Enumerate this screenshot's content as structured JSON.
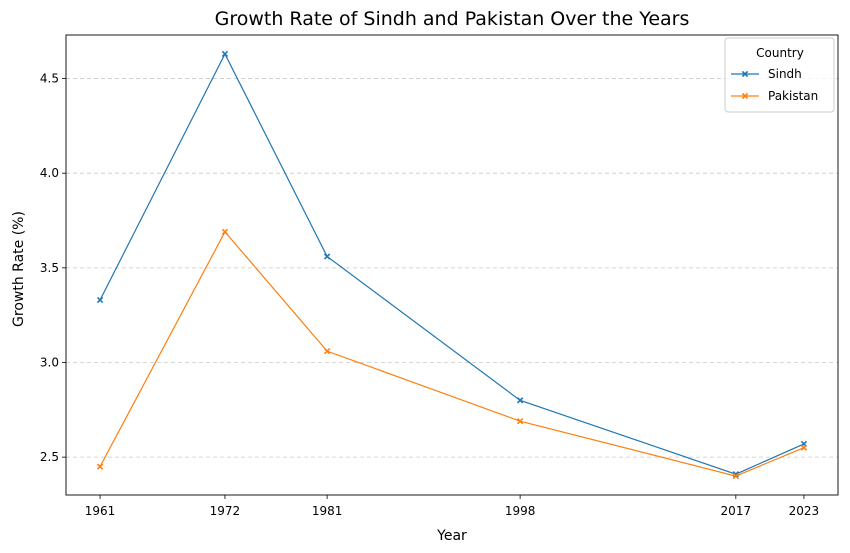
{
  "chart_data": {
    "type": "line",
    "title": "Growth Rate of Sindh and Pakistan Over the Years",
    "xlabel": "Year",
    "ylabel": "Growth Rate (%)",
    "x": [
      1961,
      1972,
      1981,
      1998,
      2017,
      2023
    ],
    "x_tick_labels": [
      "1961",
      "1972",
      "1981",
      "1998",
      "2017",
      "2023"
    ],
    "y_ticks": [
      2.5,
      3.0,
      3.5,
      4.0,
      4.5
    ],
    "y_tick_labels": [
      "2.5",
      "3.0",
      "3.5",
      "4.0",
      "4.5"
    ],
    "xlim": [
      1958,
      2026
    ],
    "ylim": [
      2.3,
      4.73
    ],
    "grid": "y-dashed",
    "legend": {
      "title": "Country",
      "placement": "top-right"
    },
    "series": [
      {
        "name": "Sindh",
        "color": "#1f77b4",
        "marker": "x",
        "values": [
          3.33,
          4.63,
          3.56,
          2.8,
          2.41,
          2.57
        ]
      },
      {
        "name": "Pakistan",
        "color": "#ff7f0e",
        "marker": "x",
        "values": [
          2.45,
          3.69,
          3.06,
          2.69,
          2.4,
          2.55
        ]
      }
    ]
  }
}
